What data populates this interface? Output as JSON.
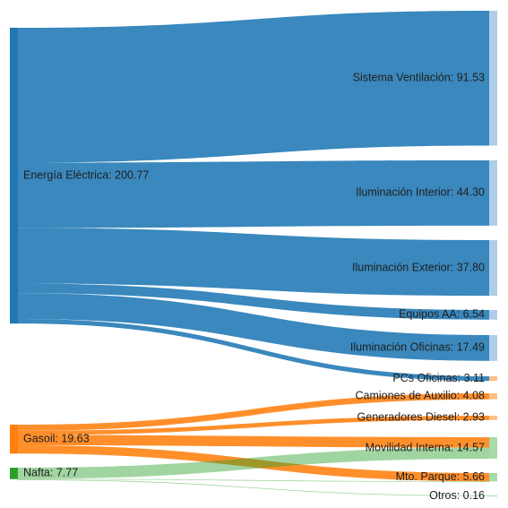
{
  "chart_data": {
    "type": "sankey",
    "sources": [
      {
        "name": "Energía Eléctrica",
        "value": 200.77,
        "label": "Energía Eléctrica: 200.77",
        "color": "#1f77b4"
      },
      {
        "name": "Gasoil",
        "value": 19.63,
        "label": "Gasoil: 19.63",
        "color": "#ff7f0e"
      },
      {
        "name": "Nafta",
        "value": 7.77,
        "label": "Nafta: 7.77",
        "color": "#2ca02c"
      }
    ],
    "targets": [
      {
        "name": "Sistema Ventilación",
        "value": 91.53,
        "label": "Sistema Ventilación: 91.53",
        "color": "#1f77b4"
      },
      {
        "name": "Iluminación Interior",
        "value": 44.3,
        "label": "Iluminación Interior: 44.30",
        "color": "#1f77b4"
      },
      {
        "name": "Iluminación Exterior",
        "value": 37.8,
        "label": "Iluminación Exterior: 37.80",
        "color": "#1f77b4"
      },
      {
        "name": "Equipos AA",
        "value": 6.54,
        "label": "Equipos AA: 6.54",
        "color": "#1f77b4"
      },
      {
        "name": "Iluminación Oficinas",
        "value": 17.49,
        "label": "Iluminación Oficinas: 17.49",
        "color": "#1f77b4"
      },
      {
        "name": "PCs Oficinas",
        "value": 3.11,
        "label": "PCs Oficinas: 3.11",
        "color": "#ff7f0e"
      },
      {
        "name": "Camiones de Auxilio",
        "value": 4.08,
        "label": "Camiones de Auxilio: 4.08",
        "color": "#ff7f0e"
      },
      {
        "name": "Generadores Diesel",
        "value": 2.93,
        "label": "Generadores Diesel: 2.93",
        "color": "#ff7f0e"
      },
      {
        "name": "Movilidad Interna",
        "value": 14.57,
        "label": "Movilidad Interna: 14.57",
        "color": "#2ca02c"
      },
      {
        "name": "Mto. Parque",
        "value": 5.66,
        "label": "Mto. Parque: 5.66",
        "color": "#2ca02c"
      },
      {
        "name": "Otros",
        "value": 0.16,
        "label": "Otros: 0.16",
        "color": "#2ca02c"
      }
    ],
    "links": [
      {
        "source": "Energía Eléctrica",
        "target": "Sistema Ventilación",
        "value": 91.53
      },
      {
        "source": "Energía Eléctrica",
        "target": "Iluminación Interior",
        "value": 44.3
      },
      {
        "source": "Energía Eléctrica",
        "target": "Iluminación Exterior",
        "value": 37.8
      },
      {
        "source": "Energía Eléctrica",
        "target": "Equipos AA",
        "value": 6.54
      },
      {
        "source": "Energía Eléctrica",
        "target": "Iluminación Oficinas",
        "value": 17.49
      },
      {
        "source": "Energía Eléctrica",
        "target": "PCs Oficinas",
        "value": 3.11
      },
      {
        "source": "Gasoil",
        "target": "Camiones de Auxilio",
        "value": 4.08
      },
      {
        "source": "Gasoil",
        "target": "Generadores Diesel",
        "value": 2.93
      },
      {
        "source": "Gasoil",
        "target": "Movilidad Interna",
        "value": 7.0
      },
      {
        "source": "Gasoil",
        "target": "Mto. Parque",
        "value": 5.62
      },
      {
        "source": "Nafta",
        "target": "Movilidad Interna",
        "value": 7.57
      },
      {
        "source": "Nafta",
        "target": "Mto. Parque",
        "value": 0.04
      },
      {
        "source": "Nafta",
        "target": "Otros",
        "value": 0.16
      }
    ]
  }
}
